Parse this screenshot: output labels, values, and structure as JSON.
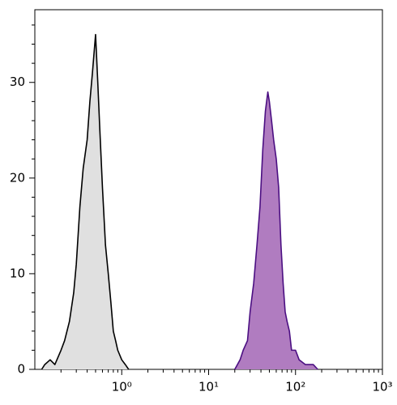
{
  "chart_data": {
    "type": "histogram-overlay",
    "xscale": "log",
    "xlim": [
      0.1,
      1000
    ],
    "ylim": [
      0,
      37.6
    ],
    "xticks": [
      {
        "value": 1,
        "label": "10⁰"
      },
      {
        "value": 10,
        "label": "10¹"
      },
      {
        "value": 100,
        "label": "10²"
      },
      {
        "value": 1000,
        "label": "10³"
      }
    ],
    "xminorticks": [
      0.2,
      0.3,
      0.4,
      0.5,
      0.6,
      0.7,
      0.8,
      0.9,
      2,
      3,
      4,
      5,
      6,
      7,
      8,
      9,
      20,
      30,
      40,
      50,
      60,
      70,
      80,
      90,
      200,
      300,
      400,
      500,
      600,
      700,
      800,
      900
    ],
    "yticks": [
      0,
      10,
      20,
      30
    ],
    "yminorticks": [
      2,
      4,
      6,
      8,
      12,
      14,
      16,
      18,
      22,
      24,
      26,
      28,
      32,
      34,
      36
    ],
    "series": [
      {
        "color": "#e0e0e0",
        "stroke": "#000000",
        "x": [
          0.12,
          0.13,
          0.15,
          0.17,
          0.2,
          0.22,
          0.25,
          0.28,
          0.3,
          0.33,
          0.36,
          0.4,
          0.43,
          0.46,
          0.5,
          0.53,
          0.56,
          0.6,
          0.65,
          0.7,
          0.75,
          0.8,
          0.85,
          0.9,
          1,
          1.1,
          1.2
        ],
        "values": [
          0,
          0.5,
          1,
          0.5,
          2,
          3,
          5,
          8,
          11,
          17,
          21,
          24,
          28,
          31,
          35,
          30,
          25,
          19,
          13,
          10,
          7,
          4,
          3,
          2,
          1,
          0.5,
          0
        ]
      },
      {
        "color": "#b07cc0",
        "stroke": "#4b0f82",
        "x": [
          20,
          23,
          25,
          28,
          30,
          33,
          36,
          39,
          42,
          45,
          48,
          50,
          53,
          56,
          60,
          64,
          68,
          72,
          76,
          80,
          85,
          90,
          100,
          110,
          130,
          160,
          180
        ],
        "values": [
          0,
          1,
          2,
          3,
          6,
          9,
          13,
          17,
          23,
          27,
          29,
          28,
          26,
          24,
          22,
          19,
          13,
          9,
          6,
          5,
          4,
          2,
          2,
          1,
          0.5,
          0.5,
          0
        ]
      }
    ]
  }
}
